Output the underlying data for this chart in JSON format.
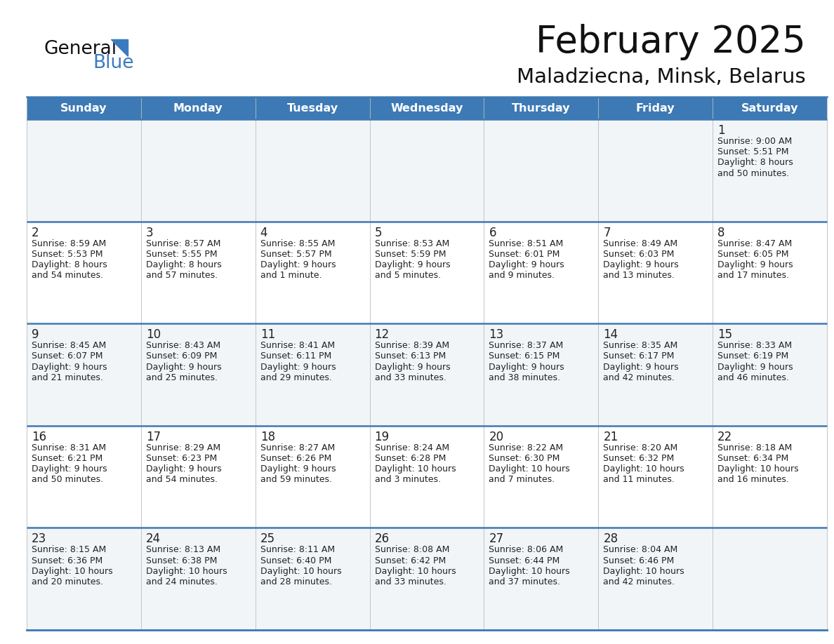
{
  "title": "February 2025",
  "subtitle": "Maladziecna, Minsk, Belarus",
  "days_of_week": [
    "Sunday",
    "Monday",
    "Tuesday",
    "Wednesday",
    "Thursday",
    "Friday",
    "Saturday"
  ],
  "header_bg": "#3d7ab5",
  "header_text": "#ffffff",
  "cell_bg": "#ffffff",
  "cell_bg_alt": "#f0f4f8",
  "line_color": "#3d7ab5",
  "text_color": "#222222",
  "calendar_data": [
    [
      null,
      null,
      null,
      null,
      null,
      null,
      {
        "day": 1,
        "sunrise": "9:00 AM",
        "sunset": "5:51 PM",
        "daylight": "8 hours",
        "daylight2": "and 50 minutes."
      }
    ],
    [
      {
        "day": 2,
        "sunrise": "8:59 AM",
        "sunset": "5:53 PM",
        "daylight": "8 hours",
        "daylight2": "and 54 minutes."
      },
      {
        "day": 3,
        "sunrise": "8:57 AM",
        "sunset": "5:55 PM",
        "daylight": "8 hours",
        "daylight2": "and 57 minutes."
      },
      {
        "day": 4,
        "sunrise": "8:55 AM",
        "sunset": "5:57 PM",
        "daylight": "9 hours",
        "daylight2": "and 1 minute."
      },
      {
        "day": 5,
        "sunrise": "8:53 AM",
        "sunset": "5:59 PM",
        "daylight": "9 hours",
        "daylight2": "and 5 minutes."
      },
      {
        "day": 6,
        "sunrise": "8:51 AM",
        "sunset": "6:01 PM",
        "daylight": "9 hours",
        "daylight2": "and 9 minutes."
      },
      {
        "day": 7,
        "sunrise": "8:49 AM",
        "sunset": "6:03 PM",
        "daylight": "9 hours",
        "daylight2": "and 13 minutes."
      },
      {
        "day": 8,
        "sunrise": "8:47 AM",
        "sunset": "6:05 PM",
        "daylight": "9 hours",
        "daylight2": "and 17 minutes."
      }
    ],
    [
      {
        "day": 9,
        "sunrise": "8:45 AM",
        "sunset": "6:07 PM",
        "daylight": "9 hours",
        "daylight2": "and 21 minutes."
      },
      {
        "day": 10,
        "sunrise": "8:43 AM",
        "sunset": "6:09 PM",
        "daylight": "9 hours",
        "daylight2": "and 25 minutes."
      },
      {
        "day": 11,
        "sunrise": "8:41 AM",
        "sunset": "6:11 PM",
        "daylight": "9 hours",
        "daylight2": "and 29 minutes."
      },
      {
        "day": 12,
        "sunrise": "8:39 AM",
        "sunset": "6:13 PM",
        "daylight": "9 hours",
        "daylight2": "and 33 minutes."
      },
      {
        "day": 13,
        "sunrise": "8:37 AM",
        "sunset": "6:15 PM",
        "daylight": "9 hours",
        "daylight2": "and 38 minutes."
      },
      {
        "day": 14,
        "sunrise": "8:35 AM",
        "sunset": "6:17 PM",
        "daylight": "9 hours",
        "daylight2": "and 42 minutes."
      },
      {
        "day": 15,
        "sunrise": "8:33 AM",
        "sunset": "6:19 PM",
        "daylight": "9 hours",
        "daylight2": "and 46 minutes."
      }
    ],
    [
      {
        "day": 16,
        "sunrise": "8:31 AM",
        "sunset": "6:21 PM",
        "daylight": "9 hours",
        "daylight2": "and 50 minutes."
      },
      {
        "day": 17,
        "sunrise": "8:29 AM",
        "sunset": "6:23 PM",
        "daylight": "9 hours",
        "daylight2": "and 54 minutes."
      },
      {
        "day": 18,
        "sunrise": "8:27 AM",
        "sunset": "6:26 PM",
        "daylight": "9 hours",
        "daylight2": "and 59 minutes."
      },
      {
        "day": 19,
        "sunrise": "8:24 AM",
        "sunset": "6:28 PM",
        "daylight": "10 hours",
        "daylight2": "and 3 minutes."
      },
      {
        "day": 20,
        "sunrise": "8:22 AM",
        "sunset": "6:30 PM",
        "daylight": "10 hours",
        "daylight2": "and 7 minutes."
      },
      {
        "day": 21,
        "sunrise": "8:20 AM",
        "sunset": "6:32 PM",
        "daylight": "10 hours",
        "daylight2": "and 11 minutes."
      },
      {
        "day": 22,
        "sunrise": "8:18 AM",
        "sunset": "6:34 PM",
        "daylight": "10 hours",
        "daylight2": "and 16 minutes."
      }
    ],
    [
      {
        "day": 23,
        "sunrise": "8:15 AM",
        "sunset": "6:36 PM",
        "daylight": "10 hours",
        "daylight2": "and 20 minutes."
      },
      {
        "day": 24,
        "sunrise": "8:13 AM",
        "sunset": "6:38 PM",
        "daylight": "10 hours",
        "daylight2": "and 24 minutes."
      },
      {
        "day": 25,
        "sunrise": "8:11 AM",
        "sunset": "6:40 PM",
        "daylight": "10 hours",
        "daylight2": "and 28 minutes."
      },
      {
        "day": 26,
        "sunrise": "8:08 AM",
        "sunset": "6:42 PM",
        "daylight": "10 hours",
        "daylight2": "and 33 minutes."
      },
      {
        "day": 27,
        "sunrise": "8:06 AM",
        "sunset": "6:44 PM",
        "daylight": "10 hours",
        "daylight2": "and 37 minutes."
      },
      {
        "day": 28,
        "sunrise": "8:04 AM",
        "sunset": "6:46 PM",
        "daylight": "10 hours",
        "daylight2": "and 42 minutes."
      },
      null
    ]
  ]
}
